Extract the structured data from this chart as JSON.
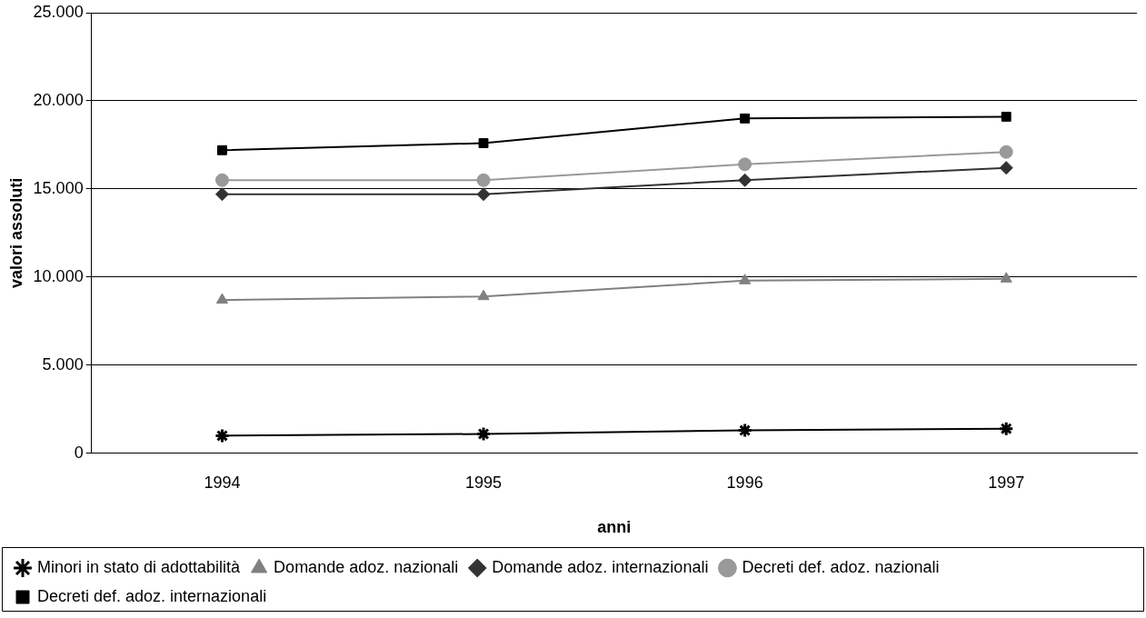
{
  "chart_data": {
    "type": "line",
    "xlabel": "anni",
    "ylabel": "valori assoluti",
    "categories": [
      "1994",
      "1995",
      "1996",
      "1997"
    ],
    "series": [
      {
        "name": "Minori in stato di adottabilità",
        "color": "#000000",
        "marker": "cross",
        "values": [
          1000,
          1100,
          1300,
          1400
        ]
      },
      {
        "name": "Domande adoz. nazionali",
        "color": "#808080",
        "marker": "triangle",
        "values": [
          8700,
          8900,
          9800,
          9900
        ]
      },
      {
        "name": "Domande adoz. internazionali",
        "color": "#333333",
        "marker": "diamond",
        "values": [
          14700,
          14700,
          15500,
          16200
        ]
      },
      {
        "name": "Decreti def. adoz. nazionali",
        "color": "#999999",
        "marker": "circle",
        "values": [
          15500,
          15500,
          16400,
          17100
        ]
      },
      {
        "name": "Decreti def. adoz. internazionali",
        "color": "#000000",
        "marker": "square",
        "values": [
          17200,
          17600,
          19000,
          19100
        ]
      }
    ],
    "ylim": [
      0,
      25000
    ],
    "yticks": [
      {
        "value": 0,
        "label": "0"
      },
      {
        "value": 5000,
        "label": "5.000"
      },
      {
        "value": 10000,
        "label": "10.000"
      },
      {
        "value": 15000,
        "label": "15.000"
      },
      {
        "value": 20000,
        "label": "20.000"
      },
      {
        "value": 25000,
        "label": "25.000"
      }
    ],
    "grid": "y",
    "legend": "bottom"
  }
}
